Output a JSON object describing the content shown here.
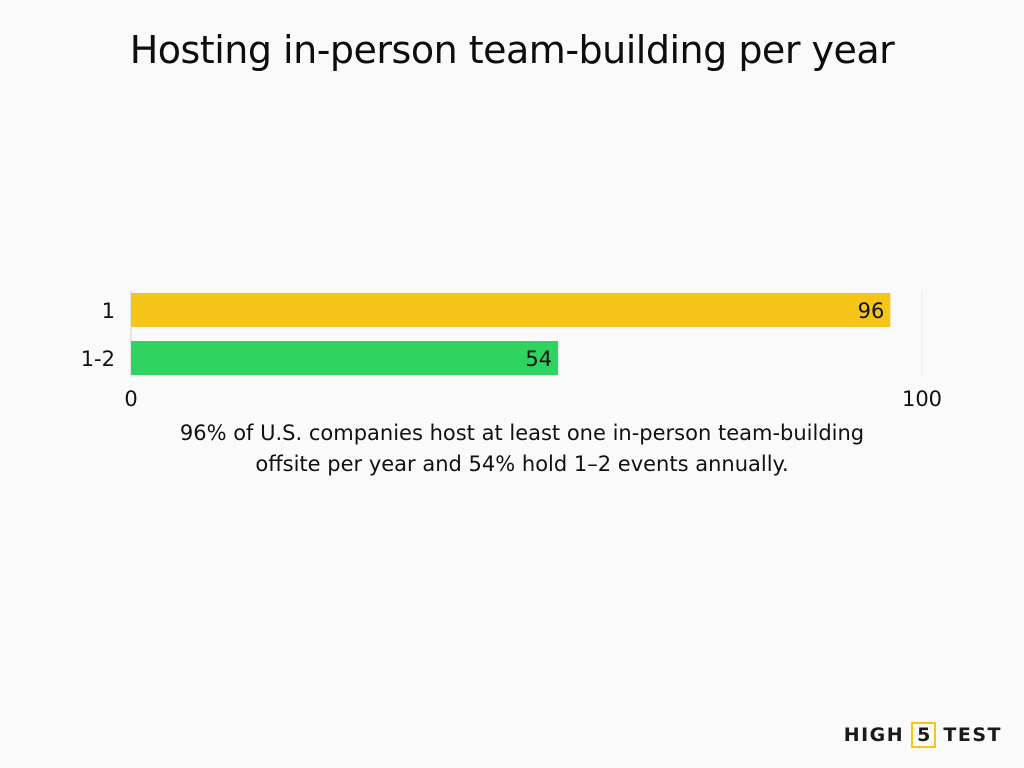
{
  "title": "Hosting in-person team-building per year",
  "caption": "96% of U.S. companies host at least one in-person team-building offsite per year and 54% hold 1–2 events annually.",
  "brand": {
    "word1": "HIGH",
    "badge": "5",
    "word2": "TEST"
  },
  "chart_data": {
    "type": "bar",
    "orientation": "horizontal",
    "categories": [
      "1",
      "1-2"
    ],
    "values": [
      96,
      54
    ],
    "colors": [
      "#f5c518",
      "#2ed360"
    ],
    "data_labels": [
      "96",
      "54"
    ],
    "xlim": [
      0,
      100
    ],
    "x_ticks": [
      "0",
      "100"
    ],
    "grid": true
  }
}
